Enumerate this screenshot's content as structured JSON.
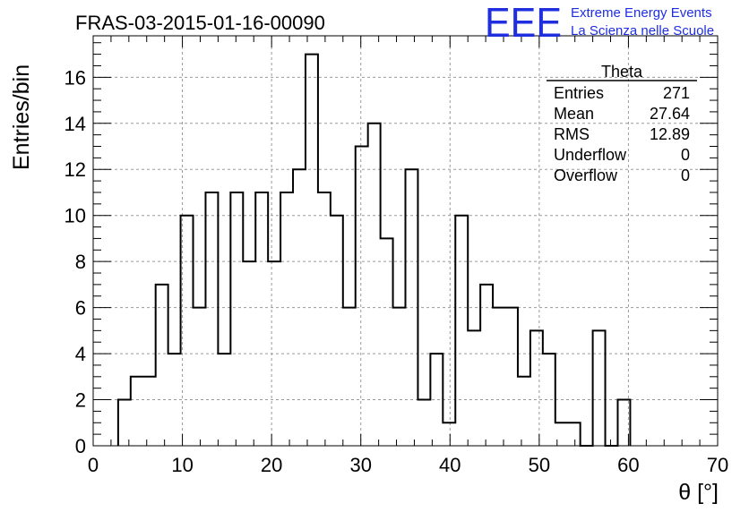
{
  "chart_data": {
    "type": "bar",
    "title": "FRAS-03-2015-01-16-00090",
    "xlabel": "θ [°]",
    "ylabel": "Entries/bin",
    "xlim": [
      0,
      70
    ],
    "ylim": [
      0,
      17.8
    ],
    "xticks": [
      0,
      10,
      20,
      30,
      40,
      50,
      60,
      70
    ],
    "yticks": [
      0,
      2,
      4,
      6,
      8,
      10,
      12,
      14,
      16
    ],
    "grid": true,
    "bin_width": 1.4,
    "bin_start": 2.8,
    "bin_centers": [
      3.5,
      4.9,
      6.3,
      7.7,
      9.1,
      10.5,
      11.9,
      13.3,
      14.7,
      16.1,
      17.5,
      18.9,
      20.3,
      21.7,
      23.1,
      24.5,
      25.9,
      27.3,
      28.7,
      30.1,
      31.5,
      32.9,
      34.3,
      35.7,
      37.1,
      38.5,
      39.9,
      41.3,
      42.7,
      44.1,
      45.5,
      46.9,
      48.3,
      49.7,
      51.1,
      52.5,
      53.9,
      55.3,
      56.7,
      58.1,
      59.5
    ],
    "values": [
      2,
      3,
      3,
      7,
      4,
      10,
      6,
      11,
      4,
      11,
      8,
      11,
      8,
      11,
      12,
      17,
      11,
      10,
      6,
      13,
      14,
      9,
      6,
      12,
      2,
      4,
      1,
      10,
      5,
      7,
      6,
      6,
      3,
      5,
      4,
      1,
      1,
      0,
      5,
      0,
      2
    ]
  },
  "stats_box": {
    "title": "Theta",
    "rows": [
      {
        "label": "Entries",
        "value": "271"
      },
      {
        "label": "Mean",
        "value": "27.64"
      },
      {
        "label": "RMS",
        "value": "12.89"
      },
      {
        "label": "Underflow",
        "value": "0"
      },
      {
        "label": "Overflow",
        "value": "0"
      }
    ]
  },
  "logo": {
    "mark": "EEE",
    "line1": "Extreme Energy Events",
    "line2": "La Scienza nelle Scuole",
    "color": "#1f2fe0"
  }
}
